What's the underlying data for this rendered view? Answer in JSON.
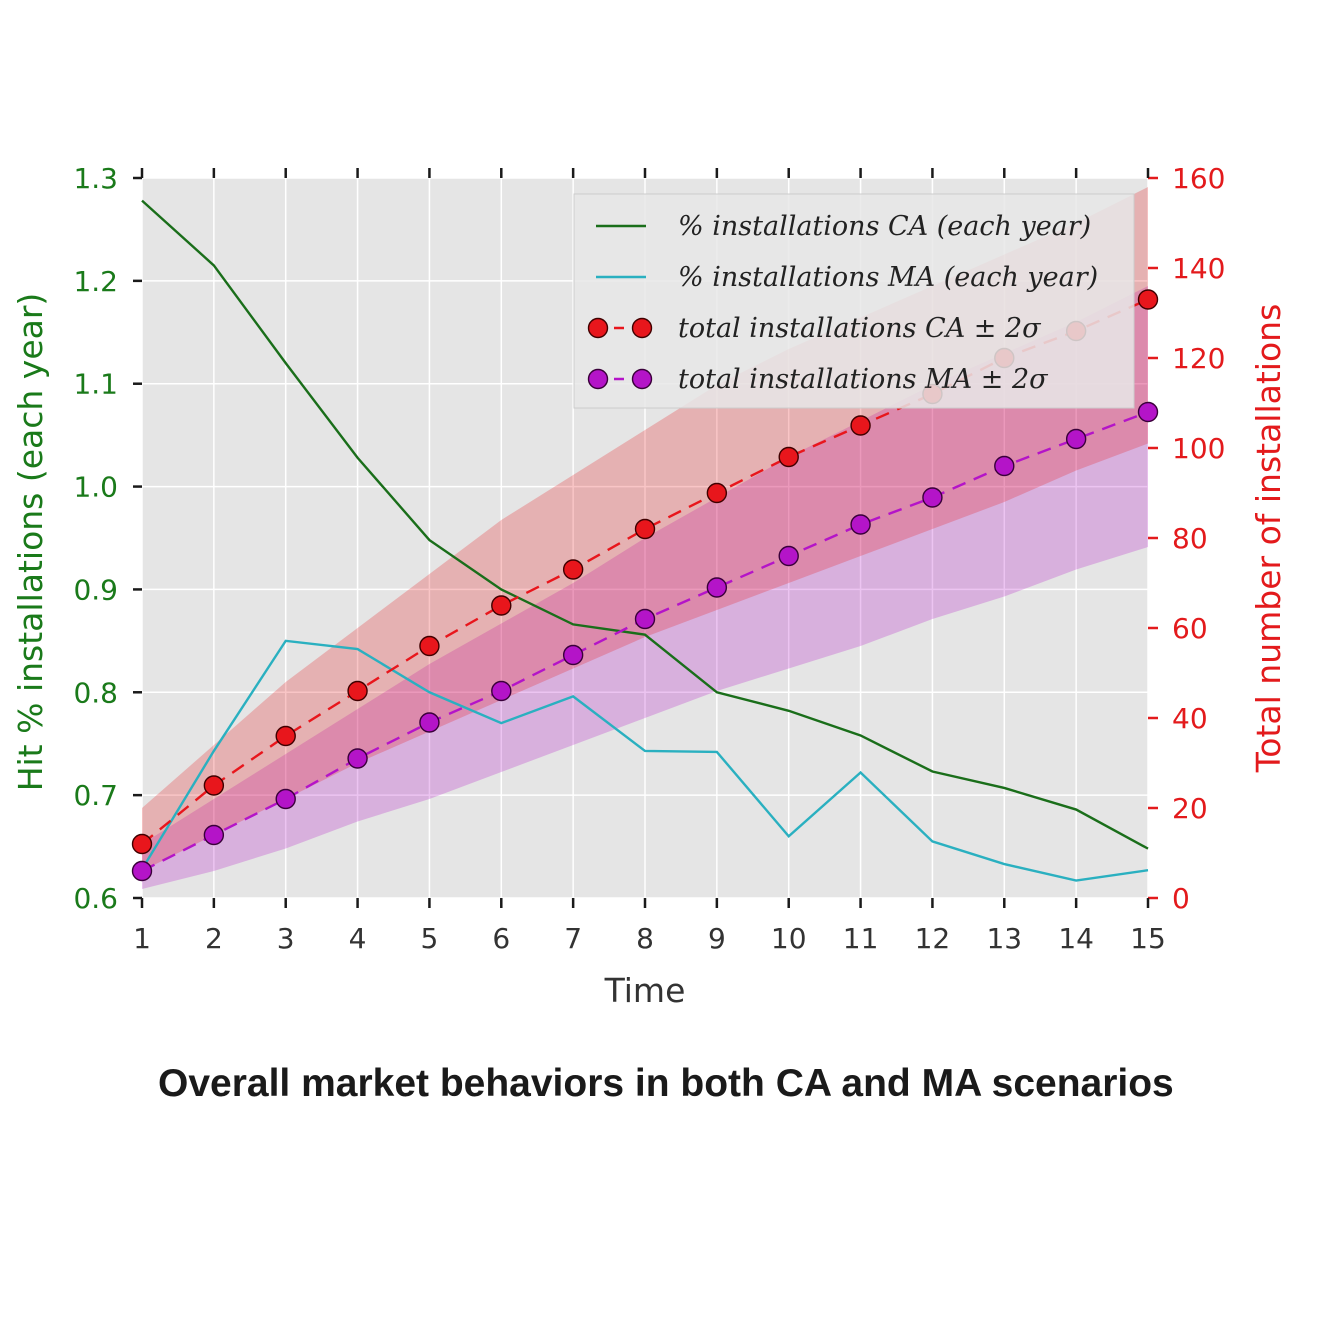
{
  "caption": "Overall market behaviors in both CA and MA scenarios",
  "chart_data": {
    "type": "line",
    "xlabel": "Time",
    "ylabel_left": "Hit % installations (each year)",
    "ylabel_right": "Total number of installations",
    "x": [
      1,
      2,
      3,
      4,
      5,
      6,
      7,
      8,
      9,
      10,
      11,
      12,
      13,
      14,
      15
    ],
    "xlim": [
      1,
      15
    ],
    "ylim_left": [
      0.6,
      1.3
    ],
    "ylim_right": [
      0,
      160
    ],
    "yticks_left": [
      "0.6",
      "0.7",
      "0.8",
      "0.9",
      "1.0",
      "1.1",
      "1.2",
      "1.3"
    ],
    "yticks_right": [
      "0",
      "20",
      "40",
      "60",
      "80",
      "100",
      "120",
      "140",
      "160"
    ],
    "grid": true,
    "legend_placement": "top-right",
    "colors": {
      "ca_pct": "#1a6e1a",
      "ma_pct": "#2ab0c0",
      "ca_total": "#e8161c",
      "ma_total": "#b414c8",
      "left_axis": "#1a7a1a",
      "right_axis": "#e31a1c",
      "plot_bg": "#e5e5e5"
    },
    "series": [
      {
        "name": "% installations CA (each year)",
        "axis": "left",
        "values": [
          1.278,
          1.215,
          1.12,
          1.028,
          0.948,
          0.9,
          0.866,
          0.856,
          0.8,
          0.782,
          0.758,
          0.723,
          0.707,
          0.686,
          0.648
        ]
      },
      {
        "name": "% installations MA (each year)",
        "axis": "left",
        "values": [
          0.628,
          0.743,
          0.85,
          0.842,
          0.8,
          0.77,
          0.796,
          0.743,
          0.742,
          0.66,
          0.722,
          0.655,
          0.633,
          0.617,
          0.627
        ]
      },
      {
        "name": "total installations CA ± 2σ",
        "axis": "right",
        "values": [
          12,
          25,
          36,
          46,
          56,
          65,
          73,
          82,
          90,
          98,
          105,
          112,
          120,
          126,
          133
        ],
        "band_upper": [
          20,
          34,
          48,
          60,
          72,
          84,
          94,
          104,
          114,
          122,
          129,
          136,
          143,
          150,
          158
        ],
        "band_lower": [
          6,
          14,
          22,
          30,
          37,
          44,
          51,
          58,
          64,
          70,
          76,
          82,
          88,
          95,
          101
        ]
      },
      {
        "name": "total installations MA ± 2σ",
        "axis": "right",
        "values": [
          6,
          14,
          22,
          31,
          39,
          46,
          54,
          62,
          69,
          76,
          83,
          89,
          96,
          102,
          108
        ],
        "band_upper": [
          12,
          22,
          32,
          42,
          52,
          61,
          70,
          80,
          89,
          98,
          106,
          114,
          121,
          128,
          136
        ],
        "band_lower": [
          2,
          6,
          11,
          17,
          22,
          28,
          34,
          40,
          46,
          51,
          56,
          62,
          67,
          73,
          78
        ]
      }
    ]
  }
}
